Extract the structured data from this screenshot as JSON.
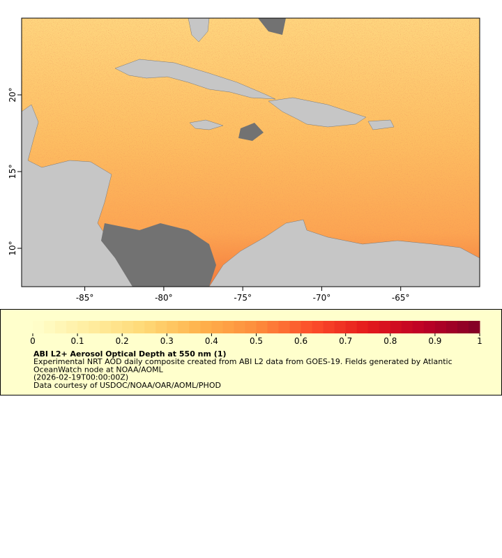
{
  "map": {
    "xlim": [
      -89,
      -60
    ],
    "ylim": [
      7.5,
      25
    ],
    "xticks": [
      {
        "value": -85,
        "label": "-85°"
      },
      {
        "value": -80,
        "label": "-80°"
      },
      {
        "value": -75,
        "label": "-75°"
      },
      {
        "value": -70,
        "label": "-70°"
      },
      {
        "value": -65,
        "label": "-65°"
      }
    ],
    "yticks": [
      {
        "value": 10,
        "label": "10°"
      },
      {
        "value": 15,
        "label": "15°"
      },
      {
        "value": 20,
        "label": "20°"
      }
    ]
  },
  "colorbar": {
    "range": [
      0,
      1
    ],
    "ticks": [
      0,
      0.1,
      0.2,
      0.3,
      0.4,
      0.5,
      0.6,
      0.7,
      0.8,
      0.9,
      1
    ],
    "colors": [
      "#ffffcc",
      "#ffeda0",
      "#fed976",
      "#feb24c",
      "#fd8d3c",
      "#fc4e2a",
      "#e31a1c",
      "#bd0026",
      "#800026"
    ],
    "title": "ABI L2+ Aerosol Optical Depth at 550 nm (1)",
    "lines": [
      "Experimental NRT AOD daily composite created from ABI L2 data from GOES-19. Fields generated by Atlantic",
      "OceanWatch node at NOAA/AOML",
      "(2026-02-19T00:00:00Z)",
      "Data courtesy of USDOC/NOAA/OAR/AOML/PHOD"
    ]
  }
}
